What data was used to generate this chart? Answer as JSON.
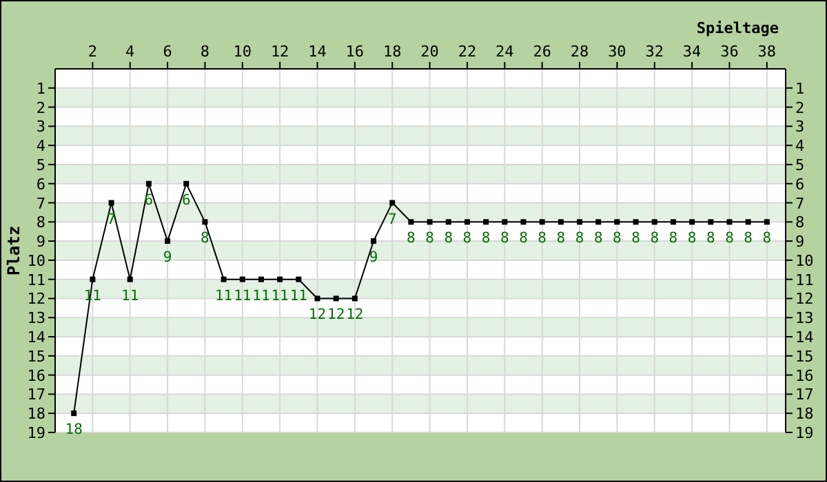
{
  "chart_data": {
    "type": "line",
    "xlabel": "Spieltage",
    "ylabel": "Platz",
    "x": [
      1,
      2,
      3,
      4,
      5,
      6,
      7,
      8,
      9,
      10,
      11,
      12,
      13,
      14,
      15,
      16,
      17,
      18,
      19,
      20,
      21,
      22,
      23,
      24,
      25,
      26,
      27,
      28,
      29,
      30,
      31,
      32,
      33,
      34,
      35,
      36,
      37,
      38
    ],
    "series": [
      {
        "color": "#000000",
        "values": [
          18,
          11,
          7,
          11,
          6,
          9,
          6,
          8,
          11,
          11,
          11,
          11,
          11,
          12,
          12,
          12,
          9,
          7,
          8,
          8,
          8,
          8,
          8,
          8,
          8,
          8,
          8,
          8,
          8,
          8,
          8,
          8,
          8,
          8,
          8,
          8,
          8,
          8
        ]
      }
    ],
    "xlim": [
      0,
      39
    ],
    "xticks": [
      2,
      4,
      6,
      8,
      10,
      12,
      14,
      16,
      18,
      20,
      22,
      24,
      26,
      28,
      30,
      32,
      34,
      36,
      38
    ],
    "ylim": [
      19,
      0
    ],
    "yticks": [
      1,
      2,
      3,
      4,
      5,
      6,
      7,
      8,
      9,
      10,
      11,
      12,
      13,
      14,
      15,
      16,
      17,
      18,
      19
    ],
    "y2lim": [
      19,
      0
    ],
    "y2ticks": [
      1,
      2,
      3,
      4,
      5,
      6,
      7,
      8,
      9,
      10,
      11,
      12,
      13,
      14,
      15,
      16,
      17,
      18,
      19
    ],
    "grid": true,
    "marker": "square",
    "line_style": "solid",
    "data_labels": true
  }
}
